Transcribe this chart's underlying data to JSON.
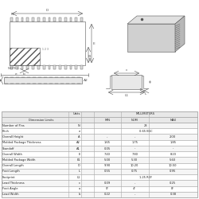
{
  "title": "",
  "bg_color": "#ffffff",
  "table_headers": [
    "",
    "",
    "Units",
    "MILLIMETERS",
    "",
    ""
  ],
  "table_subheaders": [
    "",
    "Dimension Limits",
    "",
    "MIN",
    "NOM",
    "MAX"
  ],
  "rows": [
    [
      "Number of Pins",
      "N",
      "",
      "28",
      "",
      ""
    ],
    [
      "Pitch",
      "e",
      "",
      "0.65 BSC",
      "",
      ""
    ],
    [
      "Overall Height",
      "A",
      "",
      "-",
      "-",
      "2.00"
    ],
    [
      "Molded Package Thickness",
      "A2",
      "",
      "1.65",
      "1.75",
      "1.85"
    ],
    [
      "Standoff",
      "A1",
      "",
      "0.05",
      "-",
      "-"
    ],
    [
      "Overall Width",
      "E",
      "",
      "7.40",
      "7.80",
      "8.20"
    ],
    [
      "Molded Package Width",
      "E1",
      "",
      "5.00",
      "5.30",
      "5.60"
    ],
    [
      "Overall Length",
      "D",
      "",
      "9.90",
      "10.20",
      "10.50"
    ],
    [
      "Foot Length",
      "L",
      "",
      "0.55",
      "0.75",
      "0.95"
    ],
    [
      "Footprint",
      "L1",
      "",
      "1.25 REF",
      "",
      ""
    ],
    [
      "Lead Thickness",
      "c",
      "",
      "0.09",
      "-",
      "0.25"
    ],
    [
      "Foot Angle",
      "a",
      "",
      "0°",
      "4°",
      "8°"
    ],
    [
      "Lead Width",
      "b",
      "",
      "0.22",
      "-",
      "0.38"
    ]
  ],
  "grid_color": "#aaaaaa",
  "text_color": "#222222",
  "header_bg": "#e8e8e8",
  "diagram_color": "#555555",
  "hatch_color": "#888888"
}
